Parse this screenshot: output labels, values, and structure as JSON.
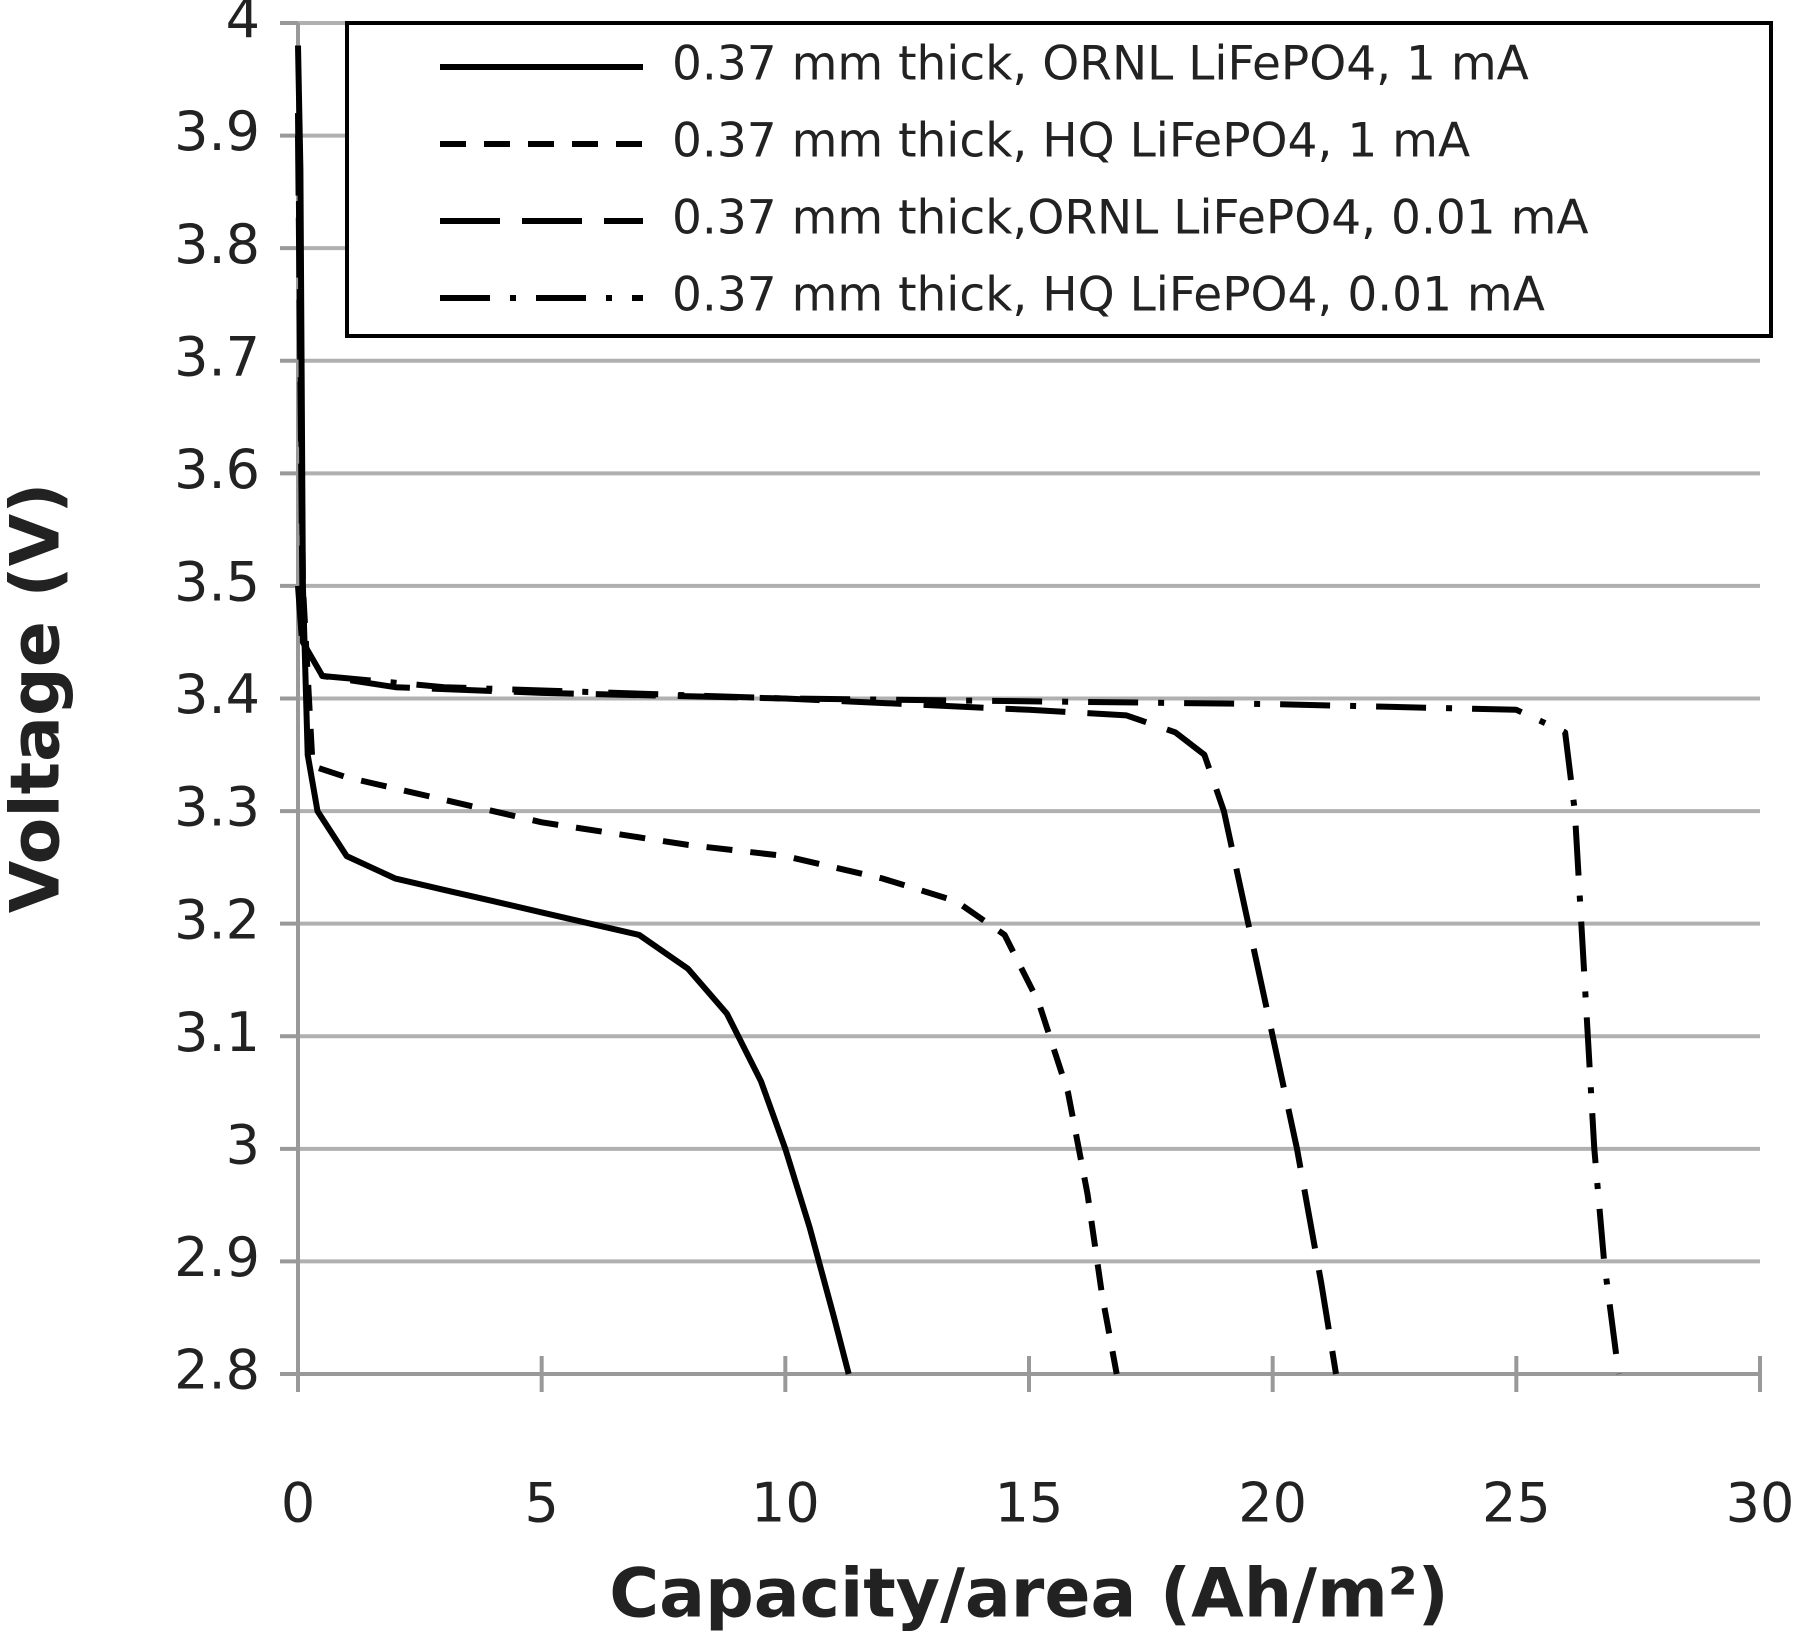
{
  "chart_data": {
    "type": "line",
    "xlabel": "Capacity/area (Ah/m²)",
    "ylabel": "Voltage (V)",
    "xlim": [
      0,
      30
    ],
    "xticks": [
      0,
      5,
      10,
      15,
      20,
      25,
      30
    ],
    "ylim": [
      2.8,
      4
    ],
    "yticks": [
      2.8,
      2.9,
      3,
      3.1,
      3.2,
      3.3,
      3.4,
      3.5,
      3.6,
      3.7,
      3.8,
      3.9,
      4
    ],
    "grid": true,
    "legend": "top-right",
    "series": [
      {
        "name": "0.37 mm thick, ORNL LiFePO4, 1 mA",
        "color": "#000000",
        "style": "solid",
        "x": [
          0,
          0.05,
          0.1,
          0.2,
          0.4,
          1,
          2,
          3,
          4,
          5,
          6,
          7,
          8,
          8.8,
          9.5,
          10,
          10.5,
          11,
          11.3
        ],
        "values": [
          3.98,
          3.87,
          3.5,
          3.35,
          3.3,
          3.26,
          3.24,
          3.23,
          3.22,
          3.21,
          3.2,
          3.19,
          3.16,
          3.12,
          3.06,
          3.0,
          2.93,
          2.85,
          2.8
        ]
      },
      {
        "name": "0.37 mm thick, HQ LiFePO4, 1 mA",
        "color": "#000000",
        "style": "dashed",
        "x": [
          0,
          0.1,
          0.3,
          1,
          3,
          5,
          8,
          10,
          12,
          13.5,
          14.5,
          15.2,
          15.8,
          16.2,
          16.5,
          16.8
        ],
        "values": [
          3.92,
          3.5,
          3.34,
          3.33,
          3.31,
          3.29,
          3.27,
          3.26,
          3.24,
          3.22,
          3.19,
          3.13,
          3.05,
          2.96,
          2.87,
          2.8
        ]
      },
      {
        "name": "0.37 mm thick,ORNL LiFePO4, 0.01 mA",
        "color": "#000000",
        "style": "longdash",
        "x": [
          0,
          0.1,
          0.5,
          2,
          5,
          10,
          15,
          17,
          18,
          18.6,
          19,
          19.5,
          20,
          20.5,
          21,
          21.3
        ],
        "values": [
          3.9,
          3.45,
          3.42,
          3.41,
          3.405,
          3.4,
          3.39,
          3.385,
          3.37,
          3.35,
          3.3,
          3.2,
          3.1,
          3.0,
          2.88,
          2.8
        ]
      },
      {
        "name": "0.37 mm thick, HQ LiFePO4, 0.01 mA",
        "color": "#000000",
        "style": "dashdot",
        "x": [
          0,
          0.1,
          0.5,
          3,
          10,
          20,
          25,
          26,
          26.2,
          26.4,
          26.6,
          26.8,
          27.1
        ],
        "values": [
          3.5,
          3.44,
          3.42,
          3.41,
          3.4,
          3.395,
          3.39,
          3.37,
          3.3,
          3.15,
          3.0,
          2.9,
          2.8
        ]
      }
    ]
  }
}
